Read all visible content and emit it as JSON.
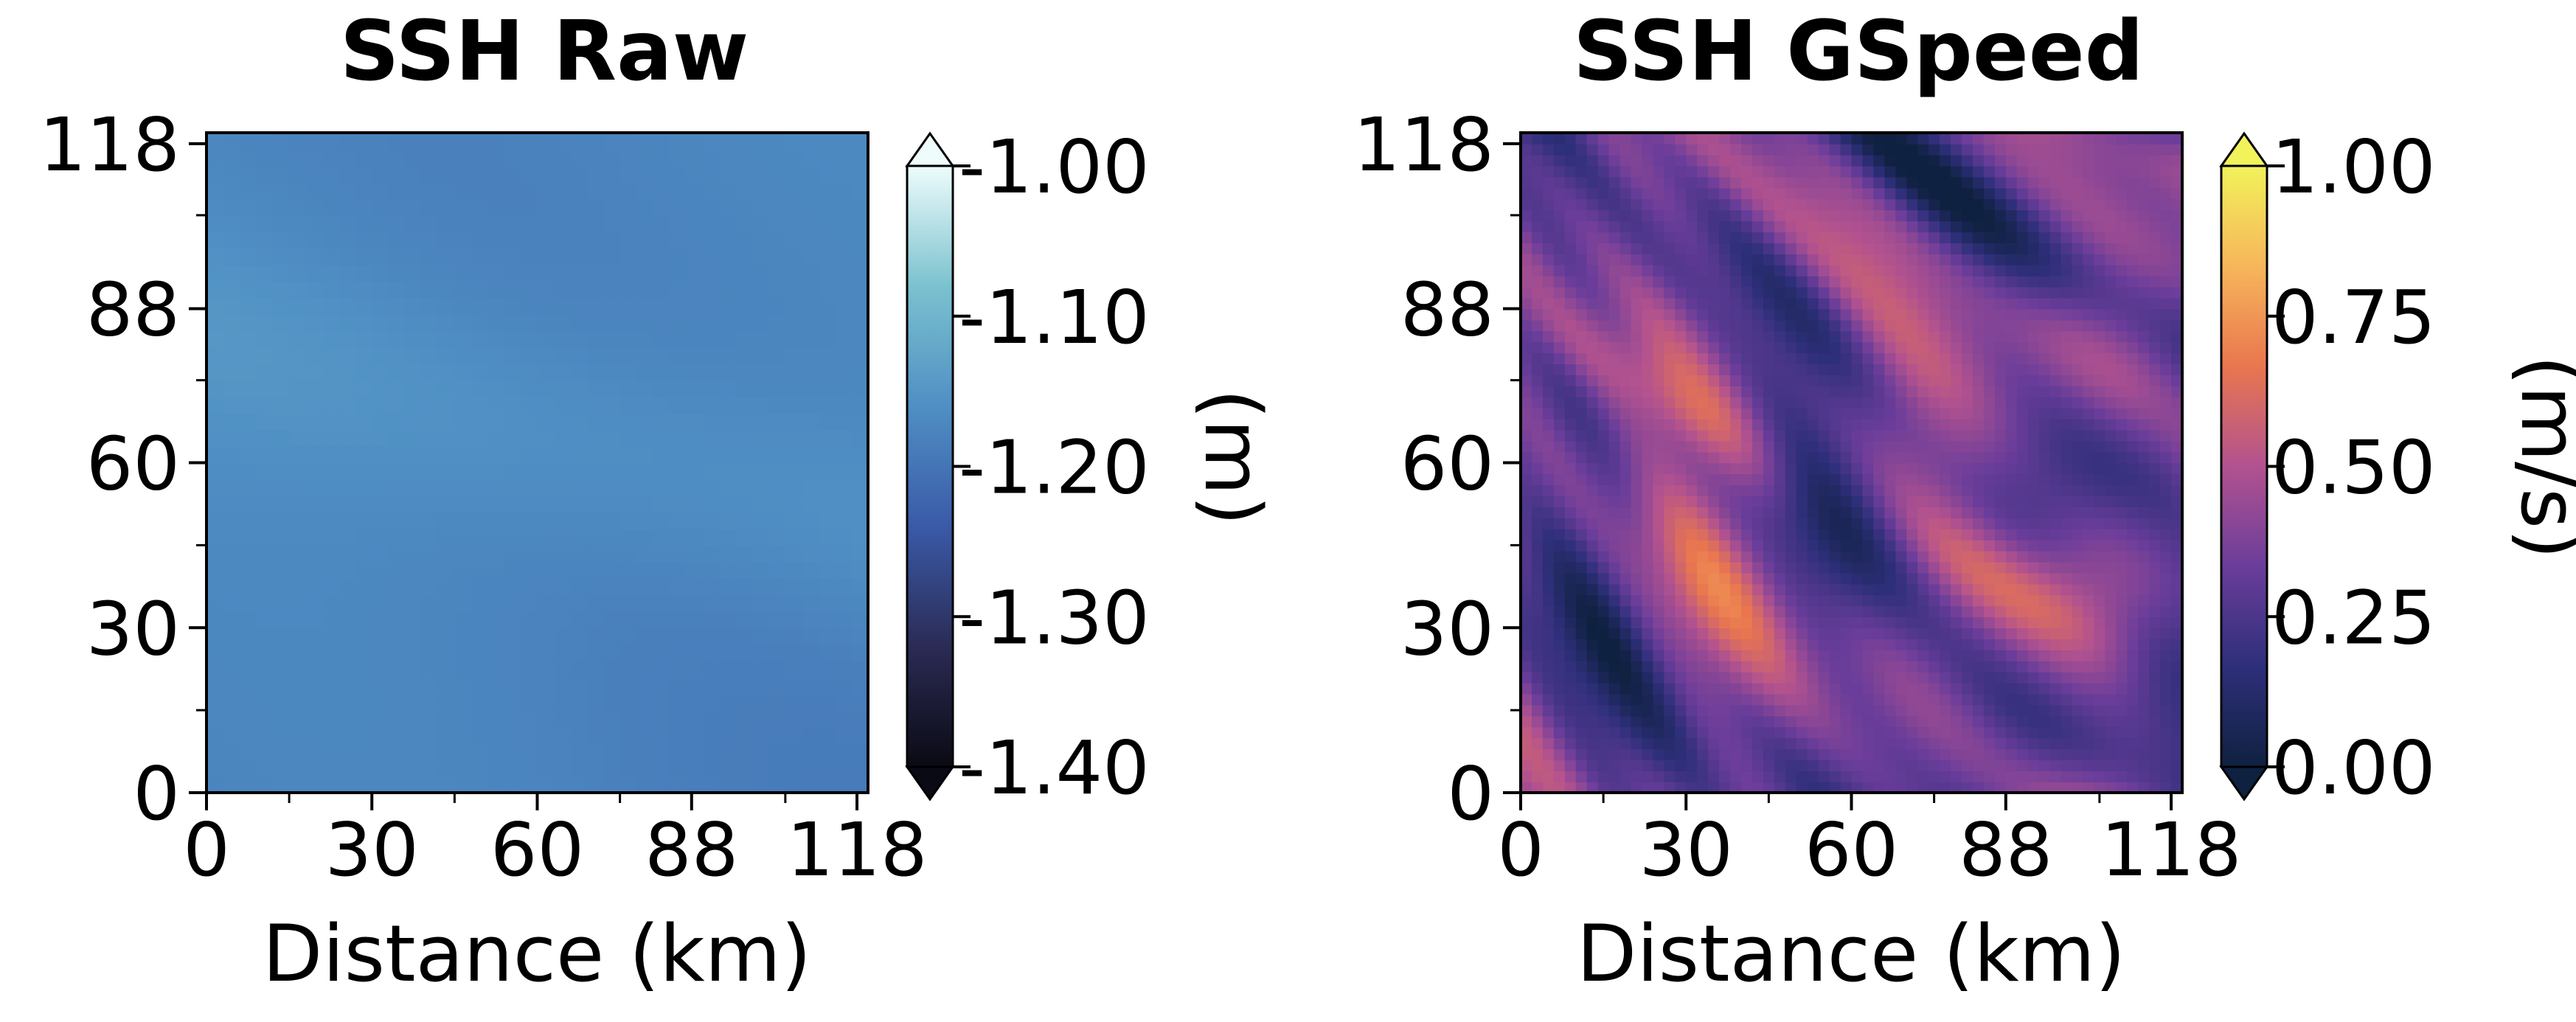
{
  "chart_data": [
    {
      "type": "heatmap",
      "title": "SSH Raw",
      "xlabel": "Distance (km)",
      "ylabel": "",
      "xlim": [
        0,
        120
      ],
      "ylim": [
        0,
        120
      ],
      "xticks": [
        "0",
        "30",
        "60",
        "88",
        "118"
      ],
      "yticks": [
        "0",
        "30",
        "60",
        "88",
        "118"
      ],
      "colorbar": {
        "label": "(m)",
        "range": [
          -1.4,
          -1.0
        ],
        "ticks": [
          "-1.40",
          "-1.30",
          "-1.20",
          "-1.10",
          "-1.00"
        ],
        "extend": "both",
        "colors": [
          "#0a0a14",
          "#2b2b55",
          "#3a5aa8",
          "#4f8fc4",
          "#7bc2cf",
          "#eefcfc"
        ]
      },
      "field": "smooth sea surface height, values about -1.14 to -1.20 m; highest along a band from upper-left to centre, lowest in the lower right"
    },
    {
      "type": "heatmap",
      "title": "SSH GSpeed",
      "xlabel": "Distance (km)",
      "ylabel": "",
      "xlim": [
        0,
        120
      ],
      "ylim": [
        0,
        120
      ],
      "xticks": [
        "0",
        "30",
        "60",
        "88",
        "118"
      ],
      "yticks": [
        "0",
        "30",
        "60",
        "88",
        "118"
      ],
      "colorbar": {
        "label": "(m/s)",
        "range": [
          0,
          1
        ],
        "ticks": [
          "0.00",
          "0.25",
          "0.50",
          "0.75",
          "1.00"
        ],
        "extend": "both",
        "colors": [
          "#0f2140",
          "#2e2f7a",
          "#6a3d9a",
          "#b2528f",
          "#e9764f",
          "#f6b65a",
          "#f2f25a"
        ]
      },
      "field": "geostrophic speed 0 to about 0.8 m/s; elongated filaments running from upper-left to lower-right"
    }
  ]
}
